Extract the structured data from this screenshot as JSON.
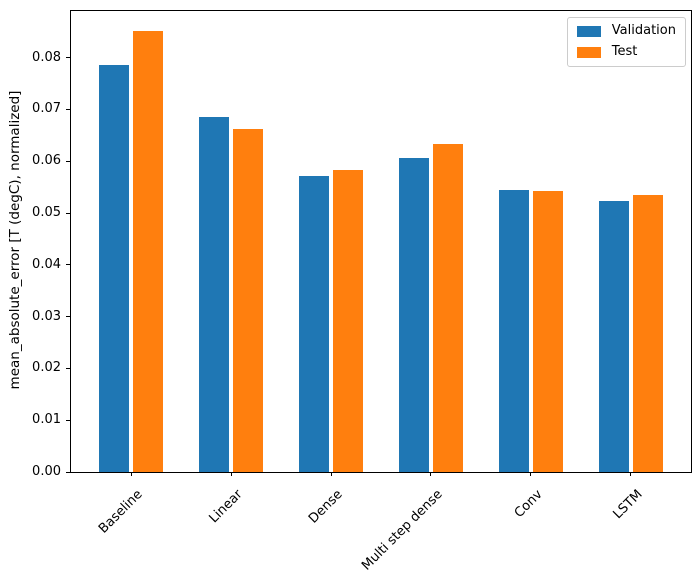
{
  "chart_data": {
    "type": "bar",
    "title": "",
    "xlabel": "",
    "ylabel": "mean_absolute_error [T (degC), normalized]",
    "categories": [
      "Baseline",
      "Linear",
      "Dense",
      "Multi step dense",
      "Conv",
      "LSTM"
    ],
    "series": [
      {
        "name": "Validation",
        "color": "#1f77b4",
        "values": [
          0.0785,
          0.0686,
          0.0572,
          0.0606,
          0.0545,
          0.0524
        ]
      },
      {
        "name": "Test",
        "color": "#ff7f0e",
        "values": [
          0.0852,
          0.0663,
          0.0583,
          0.0634,
          0.0543,
          0.0534
        ]
      }
    ],
    "ytick_labels": [
      "0.00",
      "0.01",
      "0.02",
      "0.03",
      "0.04",
      "0.05",
      "0.06",
      "0.07",
      "0.08"
    ],
    "ylim": [
      0,
      0.089
    ],
    "xtick_rotation_deg": 45,
    "grid": false,
    "legend_position": "upper right",
    "bar_group_width_ratio": 0.3,
    "bar_offsets": [
      -0.17,
      0.17
    ]
  }
}
